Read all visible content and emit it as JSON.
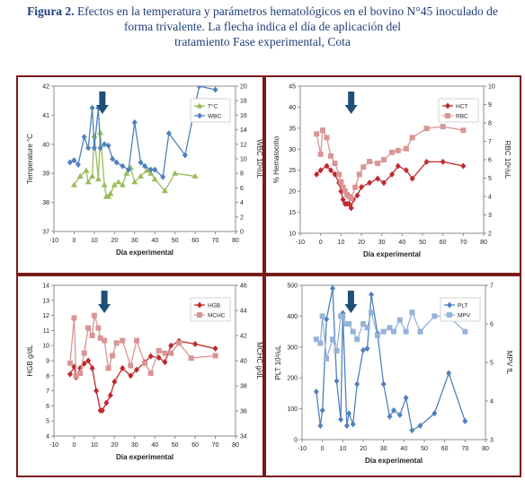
{
  "caption": {
    "label": "Figura 2.",
    "line1": "Efectos en la temperatura y parámetros  hematológicos en el bovino N°45 inoculado de",
    "line2": "forma trivalente. La flecha indica el día de aplicación  del",
    "line3": "tratamiento Fase experimental, Cota"
  },
  "colors": {
    "frame": "#7a1a1a",
    "arrow": "#1f4e79"
  },
  "chart_data": [
    {
      "id": "temp-wbc",
      "type": "line",
      "xlabel": "Día experimental",
      "xlim": [
        -10,
        80
      ],
      "xticks": [
        -10,
        0,
        10,
        20,
        30,
        40,
        50,
        60,
        70,
        80
      ],
      "ylabel_left": "Temperature °C",
      "ylim_left": [
        37,
        42
      ],
      "yticks_left": [
        37,
        38,
        39,
        40,
        41,
        42
      ],
      "ylabel_right": "WBC 10³/uL",
      "ylim_right": [
        0,
        20
      ],
      "yticks_right": [
        0,
        2,
        4,
        6,
        8,
        10,
        12,
        14,
        16,
        18,
        20
      ],
      "arrow_x": 14,
      "legend_position": "top-right",
      "series": [
        {
          "name": "T°C",
          "axis": "left",
          "color": "#9bbb59",
          "marker": "triangle",
          "x": [
            0,
            3,
            6,
            7,
            9,
            10,
            12,
            13,
            15,
            16,
            17,
            18,
            20,
            22,
            24,
            26,
            28,
            30,
            33,
            36,
            38,
            40,
            45,
            50,
            60
          ],
          "y": [
            38.6,
            38.9,
            39.1,
            38.7,
            38.9,
            40.3,
            38.8,
            40.4,
            38.6,
            38.2,
            38.2,
            38.3,
            38.6,
            38.7,
            38.6,
            39.0,
            39.2,
            38.7,
            38.9,
            39.1,
            39.0,
            38.8,
            38.4,
            39.0,
            38.9
          ]
        },
        {
          "name": "WBC",
          "axis": "right",
          "color": "#4f81bd",
          "marker": "diamond",
          "x": [
            -2,
            0,
            2,
            5,
            7,
            9,
            10,
            12,
            13,
            15,
            17,
            19,
            21,
            24,
            27,
            30,
            33,
            35,
            38,
            40,
            44,
            47,
            55,
            62,
            70
          ],
          "y": [
            9.5,
            9.8,
            9.2,
            13.0,
            11.5,
            17.0,
            11.5,
            17.0,
            11.5,
            12.0,
            11.8,
            10.0,
            9.5,
            9.0,
            8.5,
            15.0,
            9.5,
            9.0,
            8.5,
            8.5,
            7.5,
            13.5,
            10.5,
            20.0,
            19.5
          ]
        }
      ]
    },
    {
      "id": "hct-rbc",
      "type": "line",
      "xlabel": "Día experimental",
      "xlim": [
        -10,
        80
      ],
      "xticks": [
        -10,
        0,
        10,
        20,
        30,
        40,
        50,
        60,
        70,
        80
      ],
      "ylabel_left": "% Hematocrito",
      "ylim_left": [
        10,
        45
      ],
      "yticks_left": [
        10,
        15,
        20,
        25,
        30,
        35,
        40,
        45
      ],
      "ylabel_right": "RBC 10⁶/uL",
      "ylim_right": [
        2,
        10
      ],
      "yticks_right": [
        2,
        3,
        4,
        5,
        6,
        7,
        8,
        9,
        10
      ],
      "arrow_x": 15,
      "legend_position": "top-right",
      "series": [
        {
          "name": "HCT",
          "axis": "left",
          "color": "#c0282d",
          "marker": "diamond",
          "x": [
            -2,
            0,
            3,
            5,
            7,
            9,
            10,
            11,
            12,
            13,
            14,
            15,
            16,
            18,
            20,
            24,
            28,
            31,
            35,
            38,
            42,
            45,
            52,
            60,
            70
          ],
          "y": [
            24,
            25,
            26,
            25,
            24,
            22,
            20,
            18,
            17,
            17,
            17,
            16,
            18,
            19,
            21,
            22,
            23,
            22,
            24,
            26,
            25,
            23,
            27,
            27,
            26
          ]
        },
        {
          "name": "RBC",
          "axis": "right",
          "color": "#d99594",
          "marker": "square",
          "x": [
            -2,
            0,
            1,
            3,
            5,
            7,
            9,
            10,
            11,
            12,
            13,
            14,
            15,
            17,
            19,
            21,
            24,
            28,
            31,
            35,
            38,
            42,
            45,
            52,
            60,
            70
          ],
          "y": [
            7.4,
            6.3,
            7.6,
            7.2,
            6.2,
            5.8,
            5.2,
            4.8,
            4.5,
            4.3,
            4.1,
            4.0,
            3.9,
            4.5,
            5.2,
            5.6,
            5.9,
            5.8,
            6.0,
            6.4,
            6.5,
            6.6,
            7.2,
            7.7,
            7.8,
            7.6
          ]
        }
      ]
    },
    {
      "id": "hgb-mchc",
      "type": "line",
      "xlabel": "Día experimental",
      "xlim": [
        -10,
        80
      ],
      "xticks": [
        -10,
        0,
        10,
        20,
        30,
        40,
        50,
        60,
        70,
        80
      ],
      "ylabel_left": "HGB g/dL",
      "ylim_left": [
        4,
        14
      ],
      "yticks_left": [
        4,
        5,
        6,
        7,
        8,
        9,
        10,
        11,
        12,
        13,
        14
      ],
      "ylabel_right": "MCHC g/dL",
      "ylim_right": [
        34,
        46
      ],
      "yticks_right": [
        34,
        36,
        38,
        40,
        42,
        44,
        46
      ],
      "arrow_x": 15,
      "legend_position": "top-right",
      "series": [
        {
          "name": "HGB",
          "axis": "left",
          "color": "#c0282d",
          "marker": "diamond",
          "x": [
            -2,
            0,
            1,
            3,
            5,
            7,
            9,
            11,
            13,
            14,
            16,
            18,
            20,
            24,
            28,
            31,
            35,
            38,
            42,
            45,
            48,
            52,
            60,
            70
          ],
          "y": [
            8.1,
            8.6,
            7.9,
            8.5,
            8.8,
            9.0,
            8.5,
            7.0,
            5.7,
            5.7,
            6.2,
            6.7,
            7.6,
            8.5,
            8.0,
            8.4,
            8.9,
            9.3,
            9.2,
            8.9,
            10.0,
            10.3,
            10.1,
            9.8
          ]
        },
        {
          "name": "MCHC",
          "axis": "right",
          "color": "#d99594",
          "marker": "square",
          "x": [
            -2,
            0,
            1,
            3,
            5,
            7,
            9,
            10,
            12,
            13,
            15,
            17,
            19,
            21,
            24,
            28,
            31,
            35,
            38,
            42,
            45,
            48,
            52,
            58,
            70
          ],
          "y": [
            39.8,
            43.4,
            38.8,
            39.0,
            40.6,
            42.6,
            42.0,
            43.6,
            42.6,
            41.8,
            41.6,
            39.4,
            40.4,
            41.4,
            41.6,
            39.6,
            41.6,
            39.8,
            39.0,
            40.8,
            40.6,
            40.6,
            41.4,
            40.2,
            40.4
          ]
        }
      ]
    },
    {
      "id": "plt-mpv",
      "type": "line",
      "xlabel": "Día experimental",
      "xlim": [
        -10,
        80
      ],
      "xticks": [
        -10,
        0,
        10,
        20,
        30,
        40,
        50,
        60,
        70,
        80
      ],
      "ylabel_left": "PLT 10³/uL",
      "ylim_left": [
        0,
        500
      ],
      "yticks_left": [
        0,
        100,
        200,
        300,
        400,
        500
      ],
      "ylabel_right": "MPV fL",
      "ylim_right": [
        3,
        7
      ],
      "yticks_right": [
        3,
        4,
        5,
        6,
        7
      ],
      "arrow_x": 14,
      "legend_position": "top-right",
      "series": [
        {
          "name": "PLT",
          "axis": "left",
          "color": "#4f81bd",
          "marker": "diamond",
          "x": [
            -3,
            -1,
            0,
            2,
            5,
            7,
            9,
            10,
            12,
            13,
            15,
            17,
            20,
            22,
            24,
            27,
            30,
            33,
            35,
            38,
            41,
            44,
            48,
            55,
            62,
            70
          ],
          "y": [
            155,
            45,
            95,
            390,
            490,
            190,
            65,
            410,
            45,
            85,
            50,
            180,
            290,
            295,
            470,
            345,
            180,
            75,
            95,
            80,
            135,
            30,
            45,
            85,
            215,
            60
          ]
        },
        {
          "name": "MPV",
          "axis": "right",
          "color": "#95b3d7",
          "marker": "square",
          "x": [
            -3,
            -1,
            0,
            2,
            5,
            7,
            9,
            10,
            12,
            13,
            15,
            17,
            20,
            22,
            24,
            27,
            30,
            33,
            35,
            38,
            41,
            44,
            48,
            55,
            62,
            70
          ],
          "y": [
            5.6,
            5.5,
            6.2,
            5.1,
            5.6,
            5.3,
            6.2,
            6.2,
            6.0,
            6.0,
            5.8,
            5.6,
            6.0,
            5.9,
            6.3,
            5.7,
            5.8,
            5.9,
            5.8,
            6.1,
            5.8,
            6.3,
            5.8,
            6.2,
            6.2,
            5.8
          ]
        }
      ]
    }
  ]
}
